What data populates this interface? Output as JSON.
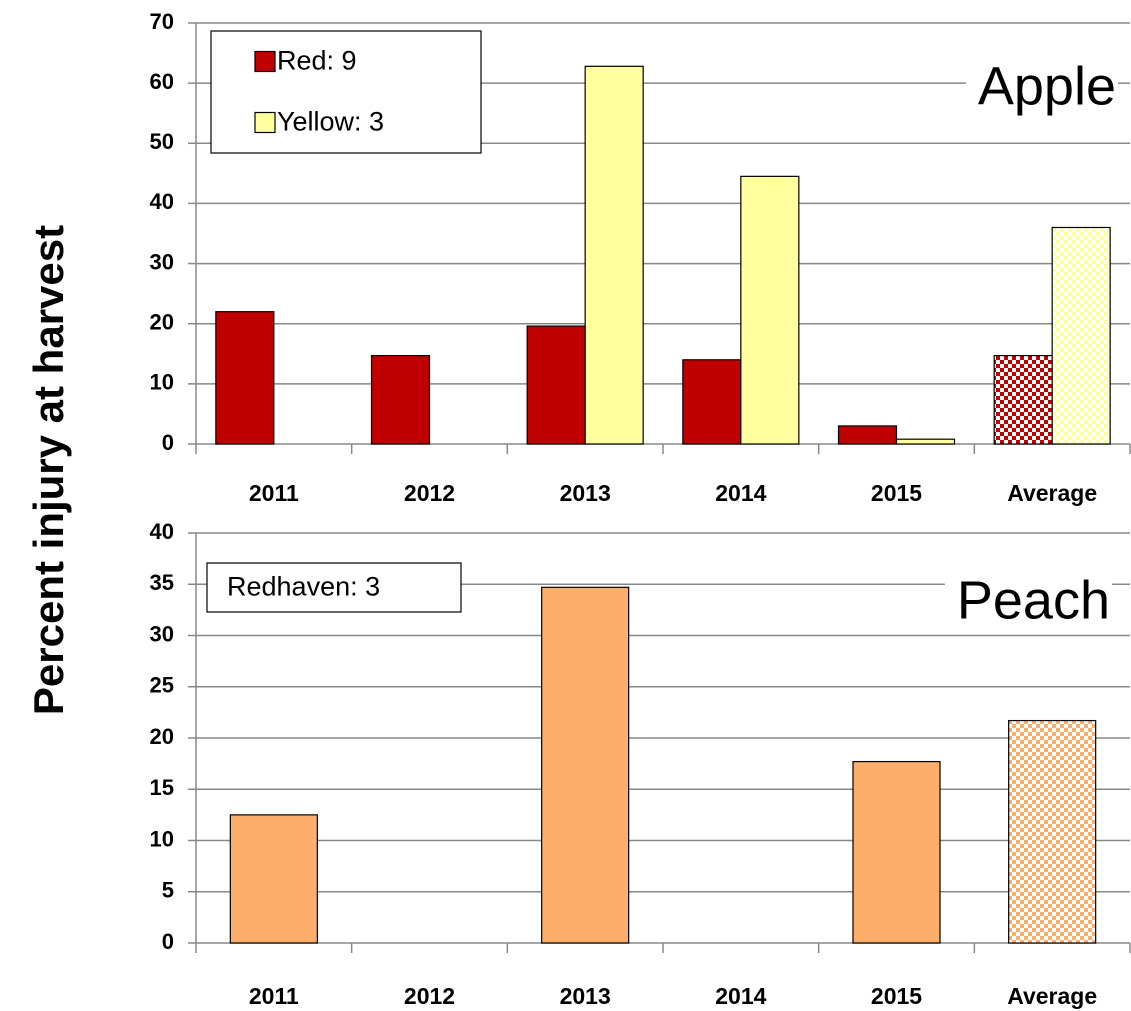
{
  "chart_data": [
    {
      "type": "bar",
      "ylabel": "Percent injury at harvest",
      "annotation": "Apple",
      "categories": [
        "2011",
        "2012",
        "2013",
        "2014",
        "2015",
        "Average"
      ],
      "series": [
        {
          "name": "Red: 9",
          "color": "#c00000",
          "values": [
            22,
            14.7,
            19.6,
            14,
            3,
            14.7
          ]
        },
        {
          "name": "Yellow: 3",
          "color": "#ffffa0",
          "values": [
            null,
            null,
            62.8,
            44.5,
            0.8,
            36
          ]
        }
      ],
      "ylim": [
        0,
        70
      ],
      "yticks": [
        0,
        10,
        20,
        30,
        40,
        50,
        60,
        70
      ],
      "grid": true,
      "legend": "upper left",
      "legend_swatch": true
    },
    {
      "type": "bar",
      "annotation": "Peach",
      "categories": [
        "2011",
        "2012",
        "2013",
        "2014",
        "2015",
        "Average"
      ],
      "series": [
        {
          "name": "Redhaven: 3",
          "color": "#fdae6b",
          "values": [
            12.5,
            null,
            34.7,
            null,
            17.7,
            21.7
          ]
        }
      ],
      "ylim": [
        0,
        40
      ],
      "yticks": [
        0,
        5,
        10,
        15,
        20,
        25,
        30,
        35,
        40
      ],
      "grid": true,
      "legend": "upper left",
      "legend_swatch": false
    }
  ]
}
